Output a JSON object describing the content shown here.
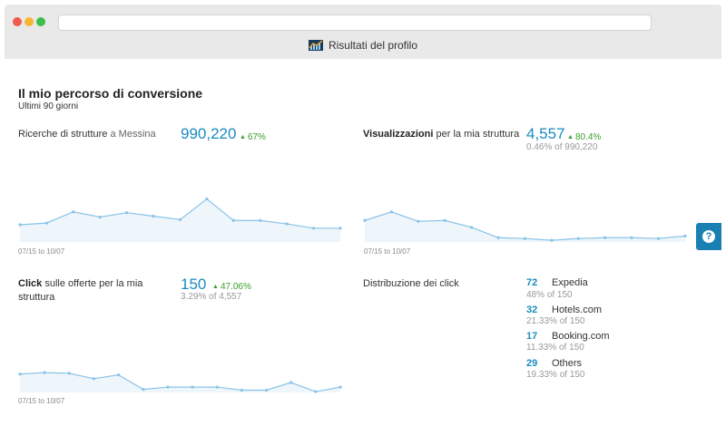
{
  "window": {
    "tab_title": "Risultati del profilo",
    "icon": "chart-icon"
  },
  "header": {
    "title": "Il mio percorso di conversione",
    "period": "Ultimi 90 giorni"
  },
  "searches": {
    "label": "Ricerche di strutture",
    "label_suffix": "a Messina",
    "value": "990,220",
    "change": "67%",
    "date_range": "07/15 to 10/07",
    "chart_data": {
      "type": "area",
      "values": [
        20,
        22,
        35,
        29,
        34,
        30,
        26,
        50,
        25,
        25,
        21,
        16,
        16
      ],
      "ylim": [
        0,
        60
      ]
    }
  },
  "views": {
    "label_bold": "Visualizzazioni",
    "label": "per la mia struttura",
    "value": "4,557",
    "change": "80.4%",
    "sub": "0.46% of 990,220",
    "date_range": "07/15 to 10/07",
    "chart_data": {
      "type": "area",
      "values": [
        25,
        35,
        24,
        25,
        17,
        5,
        4,
        2,
        4,
        5,
        5,
        4,
        7
      ],
      "ylim": [
        0,
        60
      ]
    }
  },
  "clicks": {
    "label_bold": "Click",
    "label": "sulle offerte per la mia struttura",
    "value": "150",
    "change": "47.06%",
    "sub": "3.29% of 4,557",
    "date_range": "07/15 to 10/07",
    "chart_data": {
      "type": "area",
      "values": [
        24,
        26,
        25,
        18,
        23,
        4,
        7,
        7,
        7,
        3,
        3,
        13,
        1,
        7
      ],
      "ylim": [
        0,
        45
      ]
    }
  },
  "distribution": {
    "title": "Distribuzione dei click",
    "items": [
      {
        "count": "72",
        "name": "Expedia",
        "pct": "48% of 150"
      },
      {
        "count": "32",
        "name": "Hotels.com",
        "pct": "21.33% of 150"
      },
      {
        "count": "17",
        "name": "Booking.com",
        "pct": "11.33% of 150"
      },
      {
        "count": "29",
        "name": "Others",
        "pct": "19.33% of 150"
      }
    ]
  },
  "colors": {
    "accent": "#1a8bbf",
    "line": "#88c3e6",
    "fill": "#eef5fb",
    "positive": "#3a9d2a",
    "help_button": "#1a7fb3"
  },
  "help": {
    "label": "?"
  }
}
